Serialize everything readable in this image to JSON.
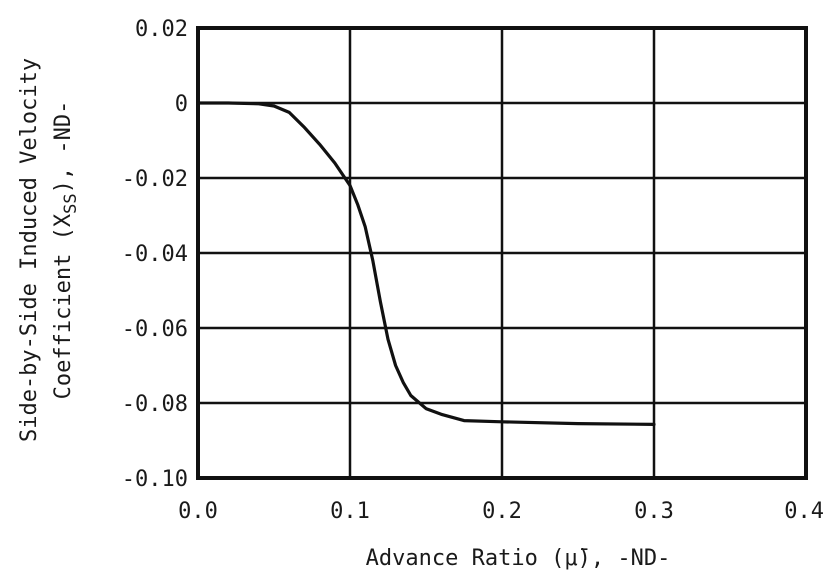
{
  "chart_data": {
    "type": "line",
    "title": "",
    "xlabel": "Advance Ratio (μ̄), -ND-",
    "ylabel_line1": "Side-by-Side Induced Velocity",
    "ylabel_line2_prefix": "Coefficient (X",
    "ylabel_line2_sub": "SS",
    "ylabel_line2_suffix": "), -ND-",
    "xlim": [
      0.0,
      0.4
    ],
    "ylim": [
      -0.1,
      0.02
    ],
    "grid": true,
    "x_ticks": [
      0.0,
      0.1,
      0.2,
      0.3,
      0.4
    ],
    "x_tick_labels": [
      "0.0",
      "0.1",
      "0.2",
      "0.3",
      "0.4"
    ],
    "y_ticks": [
      0.02,
      0,
      -0.02,
      -0.04,
      -0.06,
      -0.08,
      -0.1
    ],
    "y_tick_labels": [
      "0.02",
      "0",
      "-0.02",
      "-0.04",
      "-0.06",
      "-0.08",
      "-0.10"
    ],
    "series": [
      {
        "x": [
          0.0,
          0.02,
          0.04,
          0.05,
          0.06,
          0.07,
          0.08,
          0.09,
          0.1,
          0.105,
          0.11,
          0.115,
          0.12,
          0.125,
          0.13,
          0.135,
          0.14,
          0.15,
          0.16,
          0.175,
          0.2,
          0.25,
          0.3
        ],
        "y": [
          0.0,
          0.0,
          -0.0002,
          -0.0008,
          -0.0025,
          -0.0065,
          -0.011,
          -0.016,
          -0.022,
          -0.027,
          -0.033,
          -0.042,
          -0.053,
          -0.063,
          -0.07,
          -0.0745,
          -0.078,
          -0.0815,
          -0.083,
          -0.0847,
          -0.085,
          -0.0855,
          -0.0857
        ]
      }
    ]
  }
}
